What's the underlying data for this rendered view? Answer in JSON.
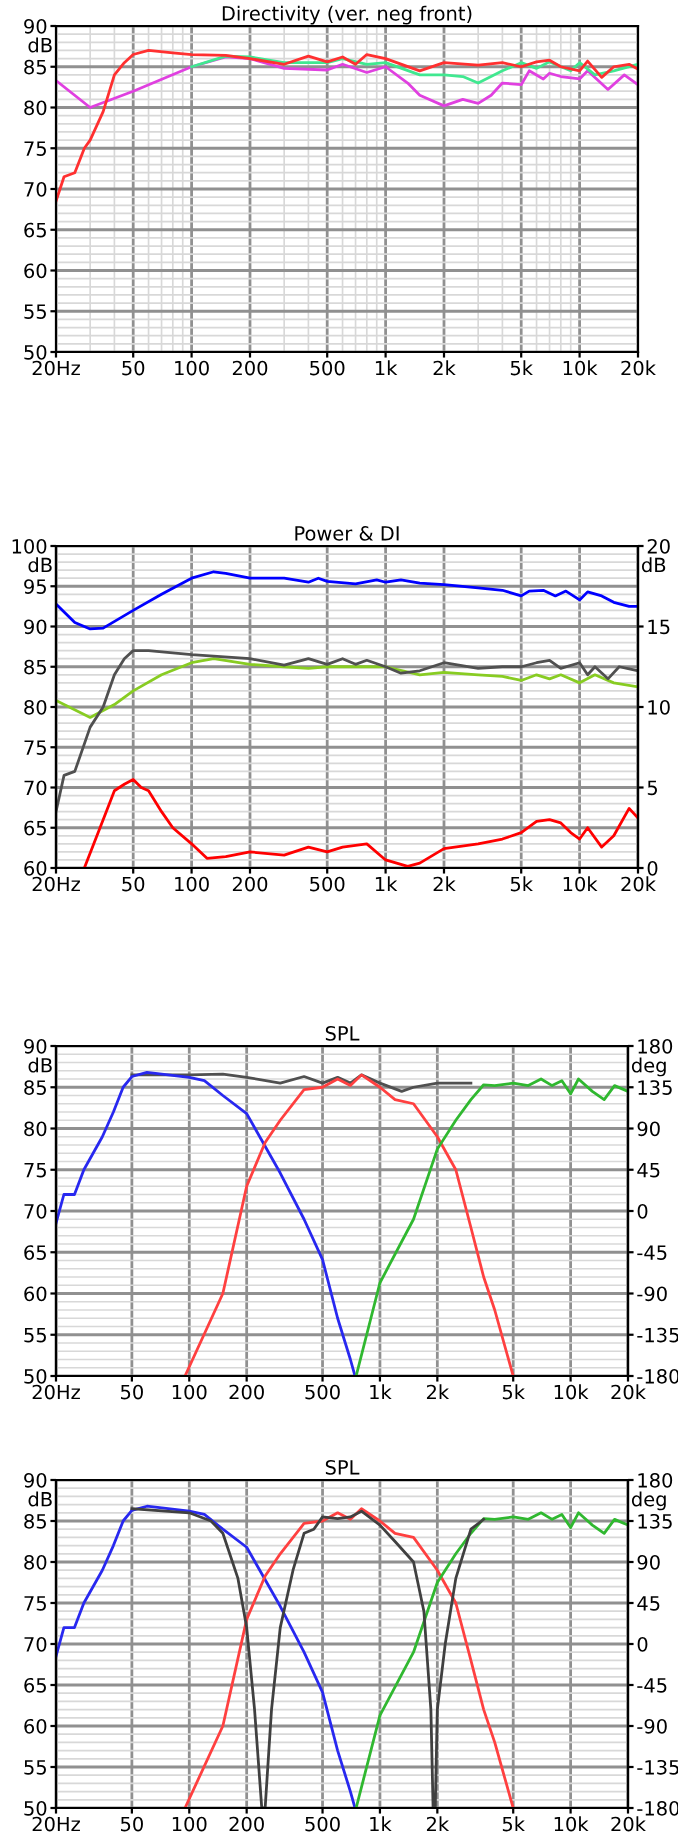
{
  "chart_data": [
    {
      "type": "line",
      "title": "Directivity (ver. neg front)",
      "ylabel": "dB",
      "log": "x",
      "grid": true,
      "line_style": "solid",
      "marker": "none",
      "xlim": [
        20,
        20000
      ],
      "xticks": [
        {
          "value": 20,
          "label": "20Hz"
        },
        50,
        100,
        200,
        500,
        {
          "value": 1000,
          "label": "1k"
        },
        {
          "value": 2000,
          "label": "2k"
        },
        {
          "value": 5000,
          "label": "5k"
        },
        {
          "value": 10000,
          "label": "10k"
        },
        {
          "value": 20000,
          "label": "20k"
        }
      ],
      "ylim": [
        50,
        90
      ],
      "yticks": [
        50,
        55,
        60,
        65,
        70,
        75,
        80,
        85,
        90
      ],
      "series": [
        {
          "color": "#e040e0",
          "x": [
            20,
            30,
            50,
            100,
            150,
            200,
            300,
            500,
            600,
            800,
            1000,
            1300,
            1500,
            2000,
            2500,
            3000,
            3500,
            4000,
            5000,
            5500,
            6500,
            7000,
            8000,
            10000,
            11000,
            14000,
            17000,
            20000
          ],
          "values": [
            83.3,
            80,
            82,
            85,
            86.2,
            86,
            84.8,
            84.6,
            85.3,
            84.3,
            85,
            83,
            81.5,
            80.2,
            81,
            80.5,
            81.5,
            83,
            82.8,
            84.5,
            83.5,
            84.2,
            83.8,
            83.5,
            84.5,
            82.2,
            84,
            82.8
          ]
        },
        {
          "color": "#40e890",
          "x": [
            100,
            150,
            200,
            300,
            500,
            600,
            800,
            1000,
            1500,
            2000,
            2500,
            3000,
            4000,
            5000,
            6000,
            7000,
            9000,
            10000,
            12000,
            15000,
            20000
          ],
          "values": [
            85,
            86.3,
            86.2,
            85.5,
            85.5,
            86,
            85.3,
            85.5,
            84,
            84,
            83.8,
            83,
            84.5,
            85.5,
            84.8,
            85.6,
            84.5,
            85.5,
            84,
            84.5,
            85.3
          ]
        },
        {
          "color": "#ff3030",
          "x": [
            20,
            22,
            25,
            28,
            30,
            35,
            40,
            45,
            50,
            60,
            80,
            100,
            150,
            200,
            300,
            400,
            500,
            600,
            700,
            800,
            1000,
            1500,
            2000,
            3000,
            4000,
            5000,
            6000,
            7000,
            8000,
            10000,
            11000,
            13000,
            15000,
            18000,
            20000
          ],
          "values": [
            68.5,
            71.5,
            72,
            75,
            76,
            79.5,
            84,
            85.5,
            86.5,
            87,
            86.7,
            86.5,
            86.4,
            86,
            85.3,
            86.3,
            85.6,
            86.2,
            85.3,
            86.5,
            86,
            84.5,
            85.5,
            85.2,
            85.5,
            85,
            85.6,
            85.8,
            85,
            84.5,
            85.7,
            83.7,
            85,
            85.3,
            84.7
          ]
        }
      ]
    },
    {
      "type": "line",
      "title": "Power & DI",
      "ylabel": "dB",
      "y2label": "dB",
      "log": "x",
      "grid": true,
      "line_style": "solid",
      "marker": "none",
      "xlim": [
        20,
        20000
      ],
      "xticks": [
        {
          "value": 20,
          "label": "20Hz"
        },
        50,
        100,
        200,
        500,
        {
          "value": 1000,
          "label": "1k"
        },
        {
          "value": 2000,
          "label": "2k"
        },
        {
          "value": 5000,
          "label": "5k"
        },
        {
          "value": 10000,
          "label": "10k"
        },
        {
          "value": 20000,
          "label": "20k"
        }
      ],
      "ylim": [
        60,
        100
      ],
      "yticks": [
        60,
        65,
        70,
        75,
        80,
        85,
        90,
        95,
        100
      ],
      "y2lim": [
        0,
        20
      ],
      "y2ticks": [
        0,
        5,
        10,
        15,
        20
      ],
      "series": [
        {
          "color": "#0000ff",
          "x": [
            20,
            25,
            30,
            35,
            50,
            70,
            100,
            130,
            150,
            200,
            300,
            400,
            450,
            500,
            700,
            900,
            1000,
            1200,
            1500,
            2000,
            3000,
            4000,
            5000,
            5500,
            6500,
            7500,
            8500,
            10000,
            11000,
            13000,
            15000,
            18000,
            20000
          ],
          "values": [
            92.8,
            90.5,
            89.7,
            89.8,
            92,
            94,
            96,
            96.8,
            96.6,
            96,
            96,
            95.5,
            96,
            95.6,
            95.3,
            95.8,
            95.5,
            95.8,
            95.4,
            95.2,
            94.8,
            94.5,
            93.8,
            94.4,
            94.5,
            93.8,
            94.4,
            93.3,
            94.3,
            93.8,
            93,
            92.5,
            92.5
          ]
        },
        {
          "color": "#88cc22",
          "x": [
            20,
            30,
            40,
            50,
            70,
            100,
            130,
            200,
            300,
            400,
            500,
            1000,
            1500,
            2000,
            3000,
            4000,
            5000,
            6000,
            7000,
            8000,
            10000,
            12000,
            15000,
            20000
          ],
          "values": [
            80.8,
            78.7,
            80.3,
            82,
            84,
            85.5,
            86,
            85.3,
            85,
            84.8,
            85,
            85,
            84,
            84.3,
            84,
            83.8,
            83.3,
            84,
            83.5,
            84,
            83,
            84,
            83,
            82.5
          ]
        },
        {
          "color": "#505050",
          "x": [
            20,
            22,
            25,
            30,
            35,
            40,
            45,
            50,
            60,
            100,
            200,
            300,
            400,
            500,
            600,
            700,
            800,
            1000,
            1200,
            1500,
            2000,
            3000,
            4000,
            5000,
            6000,
            7000,
            8000,
            10000,
            11000,
            12000,
            14000,
            16000,
            20000
          ],
          "values": [
            67,
            71.5,
            72,
            77.5,
            80,
            84,
            86,
            87,
            87,
            86.5,
            86,
            85.2,
            86,
            85.3,
            86,
            85.3,
            85.8,
            85,
            84.2,
            84.5,
            85.5,
            84.8,
            85,
            85,
            85.5,
            85.8,
            84.8,
            85.5,
            84,
            85,
            83.5,
            85,
            84.5
          ]
        },
        {
          "color": "#ff0000",
          "axis": "y2",
          "x": [
            28,
            35,
            40,
            45,
            50,
            55,
            60,
            70,
            80,
            100,
            120,
            150,
            200,
            300,
            400,
            500,
            600,
            800,
            1000,
            1300,
            1500,
            2000,
            3000,
            4000,
            5000,
            6000,
            7000,
            8000,
            9000,
            10000,
            11000,
            13000,
            15000,
            18000,
            20000
          ],
          "values": [
            0,
            3,
            4.8,
            5.2,
            5.5,
            5,
            4.8,
            3.5,
            2.5,
            1.5,
            0.6,
            0.7,
            1,
            0.8,
            1.3,
            1,
            1.3,
            1.5,
            0.5,
            0.1,
            0.3,
            1.2,
            1.5,
            1.8,
            2.2,
            2.9,
            3,
            2.8,
            2.2,
            1.8,
            2.5,
            1.3,
            2,
            3.7,
            3.1
          ]
        }
      ]
    },
    {
      "type": "line",
      "title": "SPL",
      "ylabel": "dB",
      "y2label": "deg",
      "log": "x",
      "grid": true,
      "line_style": "solid",
      "marker": "none",
      "xlim": [
        20,
        20000
      ],
      "xticks": [
        {
          "value": 20,
          "label": "20Hz"
        },
        50,
        100,
        200,
        500,
        {
          "value": 1000,
          "label": "1k"
        },
        {
          "value": 2000,
          "label": "2k"
        },
        {
          "value": 5000,
          "label": "5k"
        },
        {
          "value": 10000,
          "label": "10k"
        },
        {
          "value": 20000,
          "label": "20k"
        }
      ],
      "ylim": [
        50,
        90
      ],
      "yticks": [
        50,
        55,
        60,
        65,
        70,
        75,
        80,
        85,
        90
      ],
      "y2lim": [
        -180,
        180
      ],
      "y2ticks": [
        -180,
        -135,
        -90,
        -45,
        0,
        45,
        90,
        135,
        180
      ],
      "series": [
        {
          "color": "#505050",
          "x": [
            50,
            100,
            150,
            200,
            300,
            400,
            500,
            600,
            700,
            800,
            1000,
            1300,
            1500,
            2000,
            3000
          ],
          "values": [
            86.5,
            86.5,
            86.6,
            86.2,
            85.5,
            86.3,
            85.5,
            86.2,
            85.5,
            86.5,
            85.5,
            84.5,
            85,
            85.5,
            85.5
          ]
        },
        {
          "color": "#2828f0",
          "x": [
            20,
            22,
            25,
            28,
            35,
            40,
            45,
            50,
            60,
            100,
            120,
            150,
            200,
            300,
            400,
            500,
            600,
            700,
            740
          ],
          "values": [
            68.5,
            72,
            72,
            75,
            79,
            82,
            85,
            86.3,
            86.8,
            86.2,
            85.8,
            84,
            81.8,
            74.6,
            69,
            64.1,
            57,
            52,
            50
          ]
        },
        {
          "color": "#ff4040",
          "x": [
            95,
            150,
            200,
            250,
            300,
            400,
            500,
            600,
            700,
            800,
            1000,
            1200,
            1500,
            2000,
            2500,
            3000,
            3500,
            4000,
            5000
          ],
          "values": [
            50,
            60,
            73,
            78.3,
            81,
            84.7,
            85,
            86,
            85.2,
            86.5,
            85,
            83.5,
            83,
            79,
            75,
            68,
            62,
            58,
            50
          ]
        },
        {
          "color": "#30b830",
          "x": [
            750,
            1000,
            1500,
            2000,
            2500,
            3000,
            3500,
            4000,
            5000,
            6000,
            7000,
            8000,
            9000,
            10000,
            11000,
            13000,
            15000,
            17000,
            20000
          ],
          "values": [
            50,
            61.3,
            69,
            77.5,
            81,
            83.5,
            85.3,
            85.2,
            85.5,
            85.2,
            86,
            85.2,
            85.8,
            84.2,
            86,
            84.5,
            83.5,
            85.2,
            84.5
          ]
        }
      ]
    },
    {
      "type": "line",
      "title": "SPL",
      "ylabel": "dB",
      "y2label": "deg",
      "log": "x",
      "grid": true,
      "line_style": "solid",
      "marker": "none",
      "xlim": [
        20,
        20000
      ],
      "xticks": [
        {
          "value": 20,
          "label": "20Hz"
        },
        50,
        100,
        200,
        500,
        {
          "value": 1000,
          "label": "1k"
        },
        {
          "value": 2000,
          "label": "2k"
        },
        {
          "value": 5000,
          "label": "5k"
        },
        {
          "value": 10000,
          "label": "10k"
        },
        {
          "value": 20000,
          "label": "20k"
        }
      ],
      "ylim": [
        50,
        90
      ],
      "yticks": [
        50,
        55,
        60,
        65,
        70,
        75,
        80,
        85,
        90
      ],
      "y2lim": [
        -180,
        180
      ],
      "y2ticks": [
        -180,
        -135,
        -90,
        -45,
        0,
        45,
        90,
        135,
        180
      ],
      "series": [
        {
          "color": "#2828f0",
          "x": [
            20,
            22,
            25,
            28,
            35,
            40,
            45,
            50,
            60,
            100,
            120,
            150,
            200,
            300,
            400,
            500,
            600,
            700,
            740
          ],
          "values": [
            68.5,
            72,
            72,
            75,
            79,
            82,
            85,
            86.3,
            86.8,
            86.2,
            85.8,
            84,
            81.8,
            74.6,
            69,
            64.1,
            57,
            52,
            50
          ]
        },
        {
          "color": "#ff4040",
          "x": [
            95,
            150,
            200,
            250,
            300,
            400,
            500,
            600,
            700,
            800,
            1000,
            1200,
            1500,
            2000,
            2500,
            3000,
            3500,
            4000,
            5000
          ],
          "values": [
            50,
            60,
            73,
            78.3,
            81,
            84.7,
            85,
            86,
            85.2,
            86.5,
            85,
            83.5,
            83,
            79,
            75,
            68,
            62,
            58,
            50
          ]
        },
        {
          "color": "#30b830",
          "x": [
            750,
            1000,
            1500,
            2000,
            2500,
            3000,
            3500,
            4000,
            5000,
            6000,
            7000,
            8000,
            9000,
            10000,
            11000,
            13000,
            15000,
            17000,
            20000
          ],
          "values": [
            50,
            61.3,
            69,
            77.5,
            81,
            83.5,
            85.3,
            85.2,
            85.5,
            85.2,
            86,
            85.2,
            85.8,
            84.2,
            86,
            84.5,
            83.5,
            85.2,
            84.5
          ]
        },
        {
          "color": "#404040",
          "x": [
            50,
            100,
            130,
            150,
            180,
            200,
            220,
            240,
            250,
            270,
            300,
            350,
            400,
            450,
            500,
            600,
            700,
            800,
            1000,
            1200,
            1500,
            1700,
            1850,
            1900,
            1950,
            2000,
            2200,
            2500,
            3000,
            3500
          ],
          "values": [
            86.5,
            86,
            85,
            83.5,
            78,
            72,
            62,
            50,
            50,
            62,
            72,
            79,
            83.5,
            84,
            85.5,
            85.3,
            85.5,
            86.2,
            84.5,
            82.5,
            80,
            74,
            62,
            50,
            50,
            62,
            70,
            78,
            84,
            85.2
          ]
        }
      ]
    }
  ]
}
